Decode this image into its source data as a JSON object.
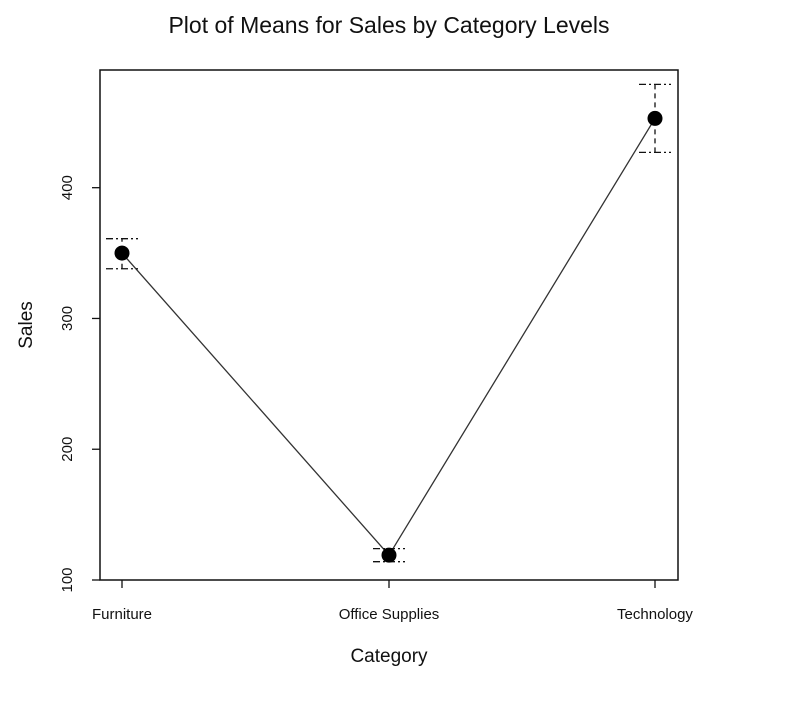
{
  "chart_data": {
    "type": "line",
    "title": "Plot of Means for Sales by Category Levels",
    "xlabel": "Category",
    "ylabel": "Sales",
    "categories": [
      "Furniture",
      "Office Supplies",
      "Technology"
    ],
    "series": [
      {
        "values": [
          350,
          119,
          453
        ],
        "error_low": [
          338,
          114,
          427
        ],
        "error_high": [
          361,
          124,
          479
        ]
      }
    ],
    "ylim": [
      100,
      490
    ],
    "yticks": [
      100,
      200,
      300,
      400
    ],
    "grid": false,
    "legend": "none",
    "colors": {
      "line": "#333333",
      "marker": "#000000",
      "error_bar": "#111111",
      "frame": "#111111"
    }
  }
}
